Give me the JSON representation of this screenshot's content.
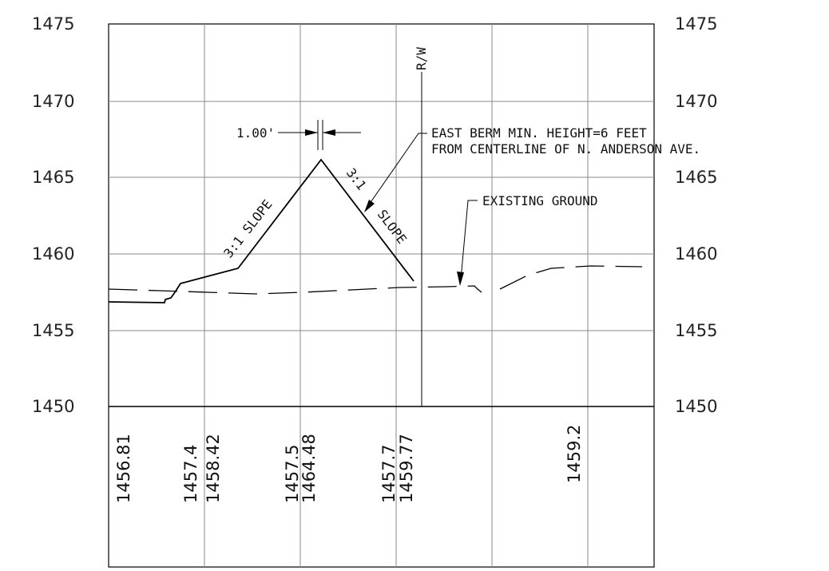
{
  "left_axis_labels": [
    "1475",
    "1470",
    "1465",
    "1460",
    "1455",
    "1450"
  ],
  "right_axis_labels": [
    "1475",
    "1470",
    "1465",
    "1460",
    "1455",
    "1450"
  ],
  "annotations": {
    "right_of_way": "R/W",
    "top_width": "1.00'",
    "slope_left": "3:1 SLOPE",
    "slope_right_a": "3:1",
    "slope_right_b": "SLOPE",
    "berm_note_line1": "EAST BERM MIN. HEIGHT=6 FEET",
    "berm_note_line2": "FROM CENTERLINE OF N. ANDERSON AVE.",
    "existing_ground": "EXISTING GROUND"
  },
  "elevation_table": {
    "values": [
      "1456.81",
      "1457.4",
      "1458.42",
      "1457.5",
      "1464.48",
      "1457.7",
      "1459.77",
      "1459.2"
    ]
  }
}
